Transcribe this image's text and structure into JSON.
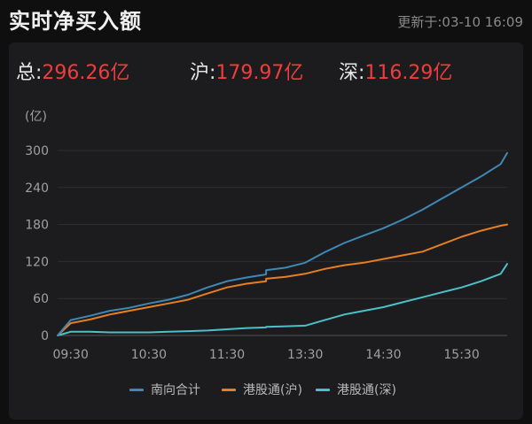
{
  "header": {
    "title": "实时净买入额",
    "updated": "更新于:03-10 16:09"
  },
  "totals": [
    {
      "label": "总:",
      "value": "296.26亿"
    },
    {
      "label": "沪:",
      "value": "179.97亿"
    },
    {
      "label": "深:",
      "value": "116.29亿"
    }
  ],
  "colors": {
    "south": "#3f88b6",
    "sh": "#e67e22",
    "sz": "#4bc0c8",
    "value_red": "#f03c3c"
  },
  "chart_data": {
    "type": "line",
    "ylabel": "(亿)",
    "ylim": [
      0,
      300
    ],
    "yticks": [
      0,
      60,
      120,
      180,
      240,
      300
    ],
    "xlim": [
      "09:20",
      "16:05"
    ],
    "xticks": [
      "09:30",
      "10:30",
      "11:30",
      "13:30",
      "14:30",
      "15:30"
    ],
    "grid": true,
    "legend_position": "bottom",
    "series": [
      {
        "name": "南向合计",
        "x": [
          "09:20",
          "09:30",
          "09:45",
          "10:00",
          "10:15",
          "10:30",
          "10:45",
          "11:00",
          "11:15",
          "11:30",
          "11:45",
          "12:00",
          "13:00",
          "13:15",
          "13:30",
          "13:45",
          "14:00",
          "14:15",
          "14:30",
          "14:45",
          "15:00",
          "15:15",
          "15:30",
          "15:45",
          "16:00",
          "16:05"
        ],
        "y": [
          0,
          25,
          32,
          40,
          45,
          52,
          58,
          66,
          78,
          88,
          94,
          99,
          106,
          110,
          118,
          135,
          150,
          162,
          174,
          188,
          204,
          222,
          240,
          258,
          278,
          296
        ]
      },
      {
        "name": "港股通(沪)",
        "x": [
          "09:20",
          "09:30",
          "09:45",
          "10:00",
          "10:15",
          "10:30",
          "10:45",
          "11:00",
          "11:15",
          "11:30",
          "11:45",
          "12:00",
          "13:00",
          "13:15",
          "13:30",
          "13:45",
          "14:00",
          "14:15",
          "14:30",
          "14:45",
          "15:00",
          "15:15",
          "15:30",
          "15:45",
          "16:00",
          "16:05"
        ],
        "y": [
          0,
          20,
          26,
          34,
          40,
          46,
          52,
          58,
          68,
          78,
          84,
          88,
          92,
          95,
          100,
          108,
          114,
          118,
          124,
          130,
          136,
          148,
          160,
          170,
          178,
          180
        ]
      },
      {
        "name": "港股通(深)",
        "x": [
          "09:20",
          "09:30",
          "09:45",
          "10:00",
          "10:15",
          "10:30",
          "10:45",
          "11:00",
          "11:15",
          "11:30",
          "11:45",
          "12:00",
          "13:00",
          "13:15",
          "13:30",
          "13:45",
          "14:00",
          "14:15",
          "14:30",
          "14:45",
          "15:00",
          "15:15",
          "15:30",
          "15:45",
          "16:00",
          "16:05"
        ],
        "y": [
          0,
          6,
          6,
          5,
          5,
          5,
          6,
          7,
          8,
          10,
          12,
          13,
          14,
          15,
          16,
          25,
          34,
          40,
          46,
          54,
          62,
          70,
          78,
          88,
          100,
          116
        ]
      }
    ]
  }
}
